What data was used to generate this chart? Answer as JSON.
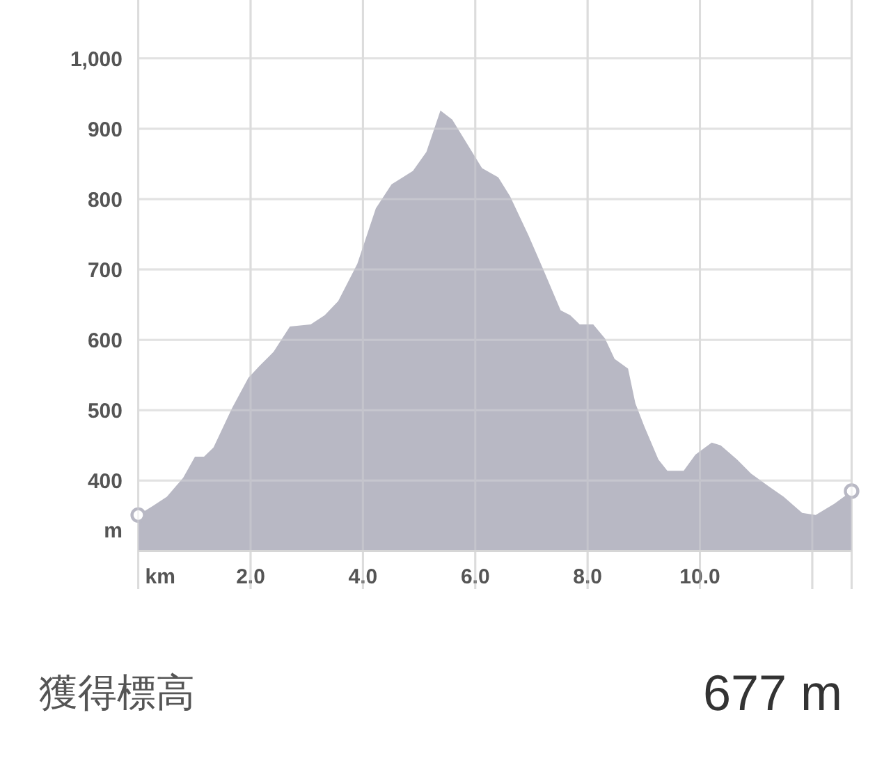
{
  "chart_data": {
    "type": "area",
    "xlabel": "km",
    "ylabel": "m",
    "xlim": [
      0,
      12.7
    ],
    "ylim": [
      300,
      1080
    ],
    "xticks": [
      {
        "value": 0,
        "label": null
      },
      {
        "value": 2,
        "label": "2.0"
      },
      {
        "value": 4,
        "label": "4.0"
      },
      {
        "value": 6,
        "label": "6.0"
      },
      {
        "value": 8,
        "label": "8.0"
      },
      {
        "value": 10,
        "label": "10.0"
      },
      {
        "value": 12,
        "label": null
      }
    ],
    "yticks": [
      400,
      500,
      600,
      700,
      800,
      900,
      {
        "value": 1000,
        "label": "1,000"
      }
    ],
    "grid": true,
    "series": [
      {
        "color": "#b8b8c4",
        "x": [
          0,
          0.26,
          0.51,
          0.8,
          1.01,
          1.17,
          1.34,
          1.67,
          1.96,
          2.16,
          2.41,
          2.7,
          3.07,
          3.32,
          3.56,
          3.9,
          4.23,
          4.51,
          4.89,
          5.13,
          5.38,
          5.59,
          5.79,
          6.12,
          6.41,
          6.62,
          6.95,
          7.2,
          7.52,
          7.69,
          7.86,
          8.1,
          8.31,
          8.48,
          8.72,
          8.85,
          9.01,
          9.26,
          9.42,
          9.71,
          9.92,
          10.21,
          10.37,
          10.66,
          10.91,
          11.24,
          11.49,
          11.82,
          12.06,
          12.39,
          12.7
        ],
        "values": [
          351,
          364,
          377,
          404,
          434,
          434,
          447,
          503,
          546,
          563,
          583,
          619,
          622,
          635,
          655,
          708,
          787,
          821,
          840,
          867,
          926,
          913,
          887,
          844,
          831,
          804,
          748,
          702,
          642,
          635,
          622,
          622,
          602,
          573,
          559,
          510,
          477,
          430,
          414,
          414,
          437,
          454,
          450,
          430,
          410,
          391,
          377,
          354,
          351,
          367,
          385
        ]
      },
      {
        "type": "scatter",
        "marker": "circle",
        "color": "#b8b8c4",
        "x": [
          0,
          12.7
        ],
        "values": [
          351,
          385
        ]
      }
    ],
    "annotations": [
      "獲得標高",
      "677 m"
    ]
  }
}
